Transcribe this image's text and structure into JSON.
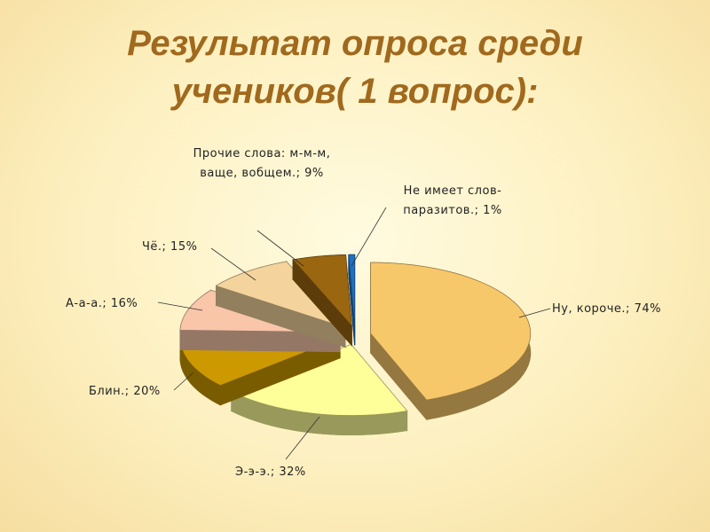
{
  "chart_data": {
    "type": "pie",
    "title": "Результат опроса среди учеников( 1 вопрос):",
    "values": [
      74,
      32,
      20,
      16,
      15,
      9,
      1
    ],
    "value_labels": [
      "Ну, короче.; 74%",
      "Э-э-э.; 32%",
      "Блин.; 20%",
      "А-а-а.; 16%",
      "Чё.; 15%",
      "Прочие слова: м-м-м, ваще, вобщем.; 9%",
      "Не имеет слов-паразитов.; 1%"
    ],
    "colors": [
      "#f7c86a",
      "#ffff99",
      "#cc9900",
      "#f9c6aa",
      "#f4d49c",
      "#9a6610",
      "#1f6fc0"
    ]
  }
}
